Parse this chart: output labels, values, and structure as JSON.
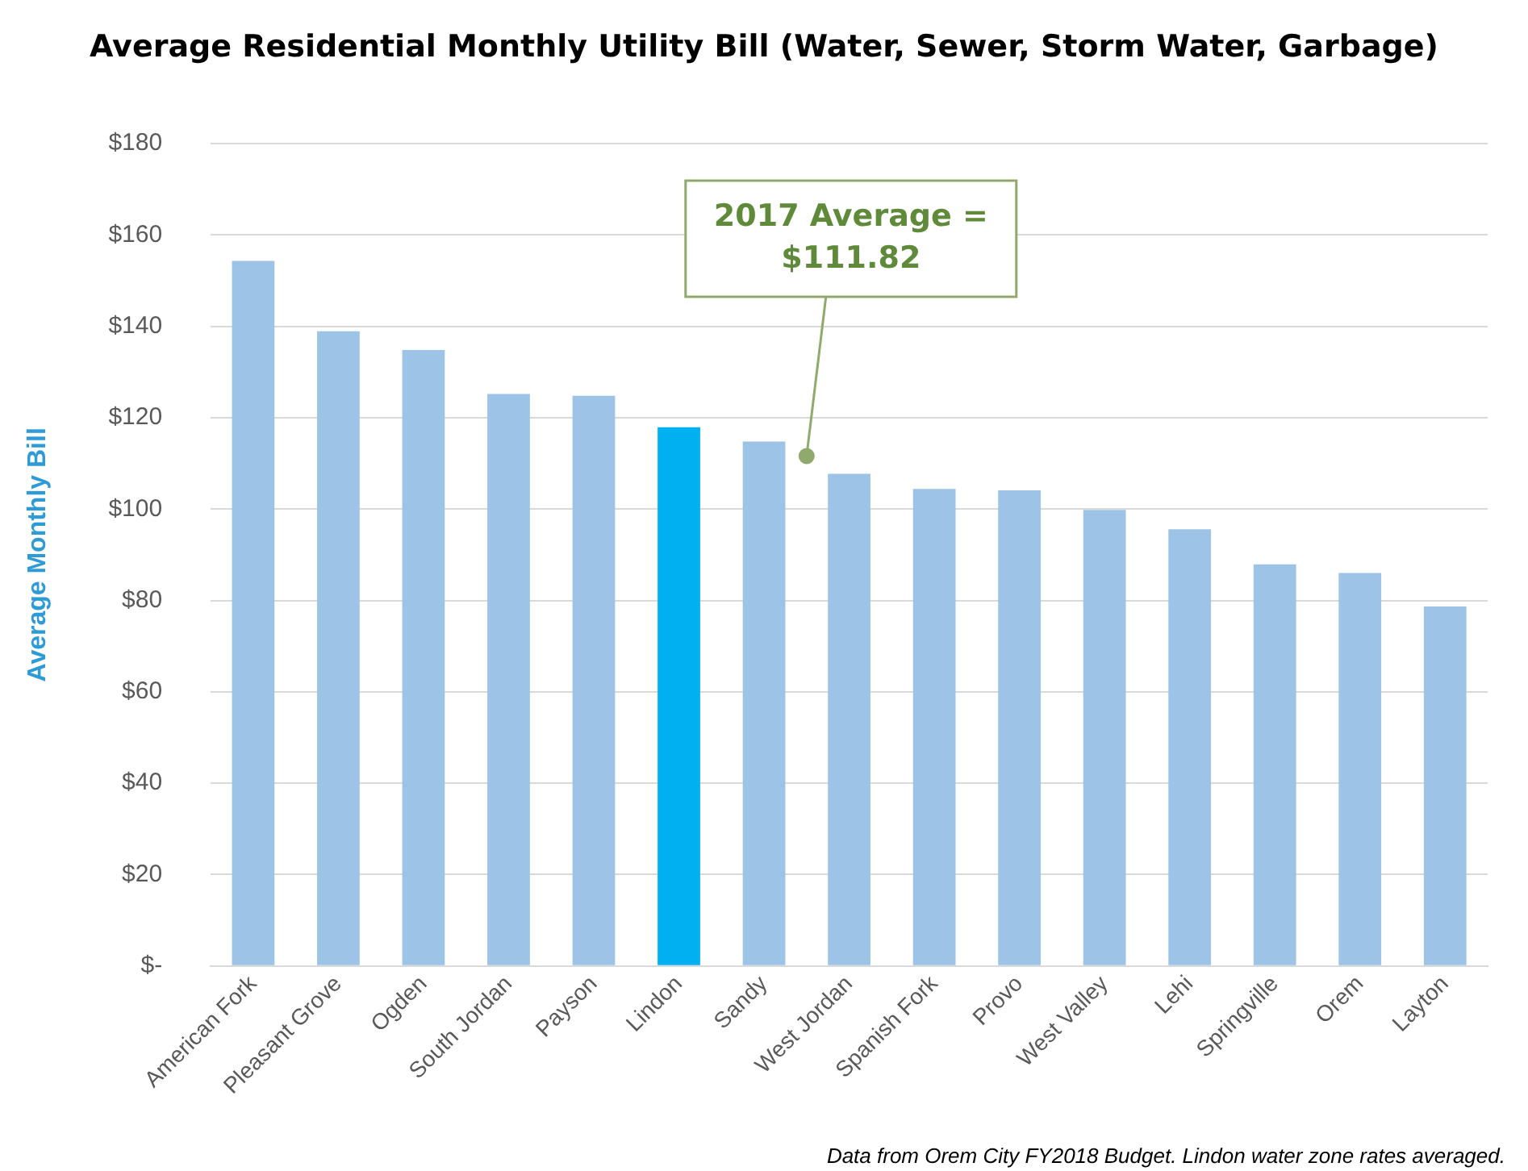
{
  "chart_data": {
    "type": "bar",
    "title": "Average Residential Monthly Utility Bill (Water, Sewer, Storm Water, Garbage)",
    "ylabel": "Average Monthly Bill",
    "categories": [
      "American Fork",
      "Pleasant Grove",
      "Ogden",
      "South Jordan",
      "Payson",
      "Lindon",
      "Sandy",
      "West Jordan",
      "Spanish Fork",
      "Provo",
      "West Valley",
      "Lehi",
      "Springville",
      "Orem",
      "Layton"
    ],
    "values": [
      154.3,
      138.9,
      134.8,
      125.2,
      124.8,
      117.9,
      114.8,
      107.7,
      104.4,
      104.1,
      99.8,
      95.6,
      87.9,
      86,
      78.7
    ],
    "colors": [
      "#9dc3e6",
      "#9dc3e6",
      "#9dc3e6",
      "#9dc3e6",
      "#9dc3e6",
      "#00b0f0",
      "#9dc3e6",
      "#9dc3e6",
      "#9dc3e6",
      "#9dc3e6",
      "#9dc3e6",
      "#9dc3e6",
      "#9dc3e6",
      "#9dc3e6",
      "#9dc3e6"
    ],
    "ylim": [
      0,
      180
    ],
    "yticks": [
      {
        "value": 0,
        "label": "$-"
      },
      {
        "value": 20,
        "label": "$20"
      },
      {
        "value": 40,
        "label": "$40"
      },
      {
        "value": 60,
        "label": "$60"
      },
      {
        "value": 80,
        "label": "$80"
      },
      {
        "value": 100,
        "label": "$100"
      },
      {
        "value": 120,
        "label": "$120"
      },
      {
        "value": 140,
        "label": "$140"
      },
      {
        "value": 160,
        "label": "$160"
      },
      {
        "value": 180,
        "label": "$180"
      }
    ],
    "grid": "y",
    "annotations": [
      "2017 Average =\n$111.82",
      "Data from Orem City FY2018 Budget. Lindon water zone rates averaged."
    ]
  }
}
